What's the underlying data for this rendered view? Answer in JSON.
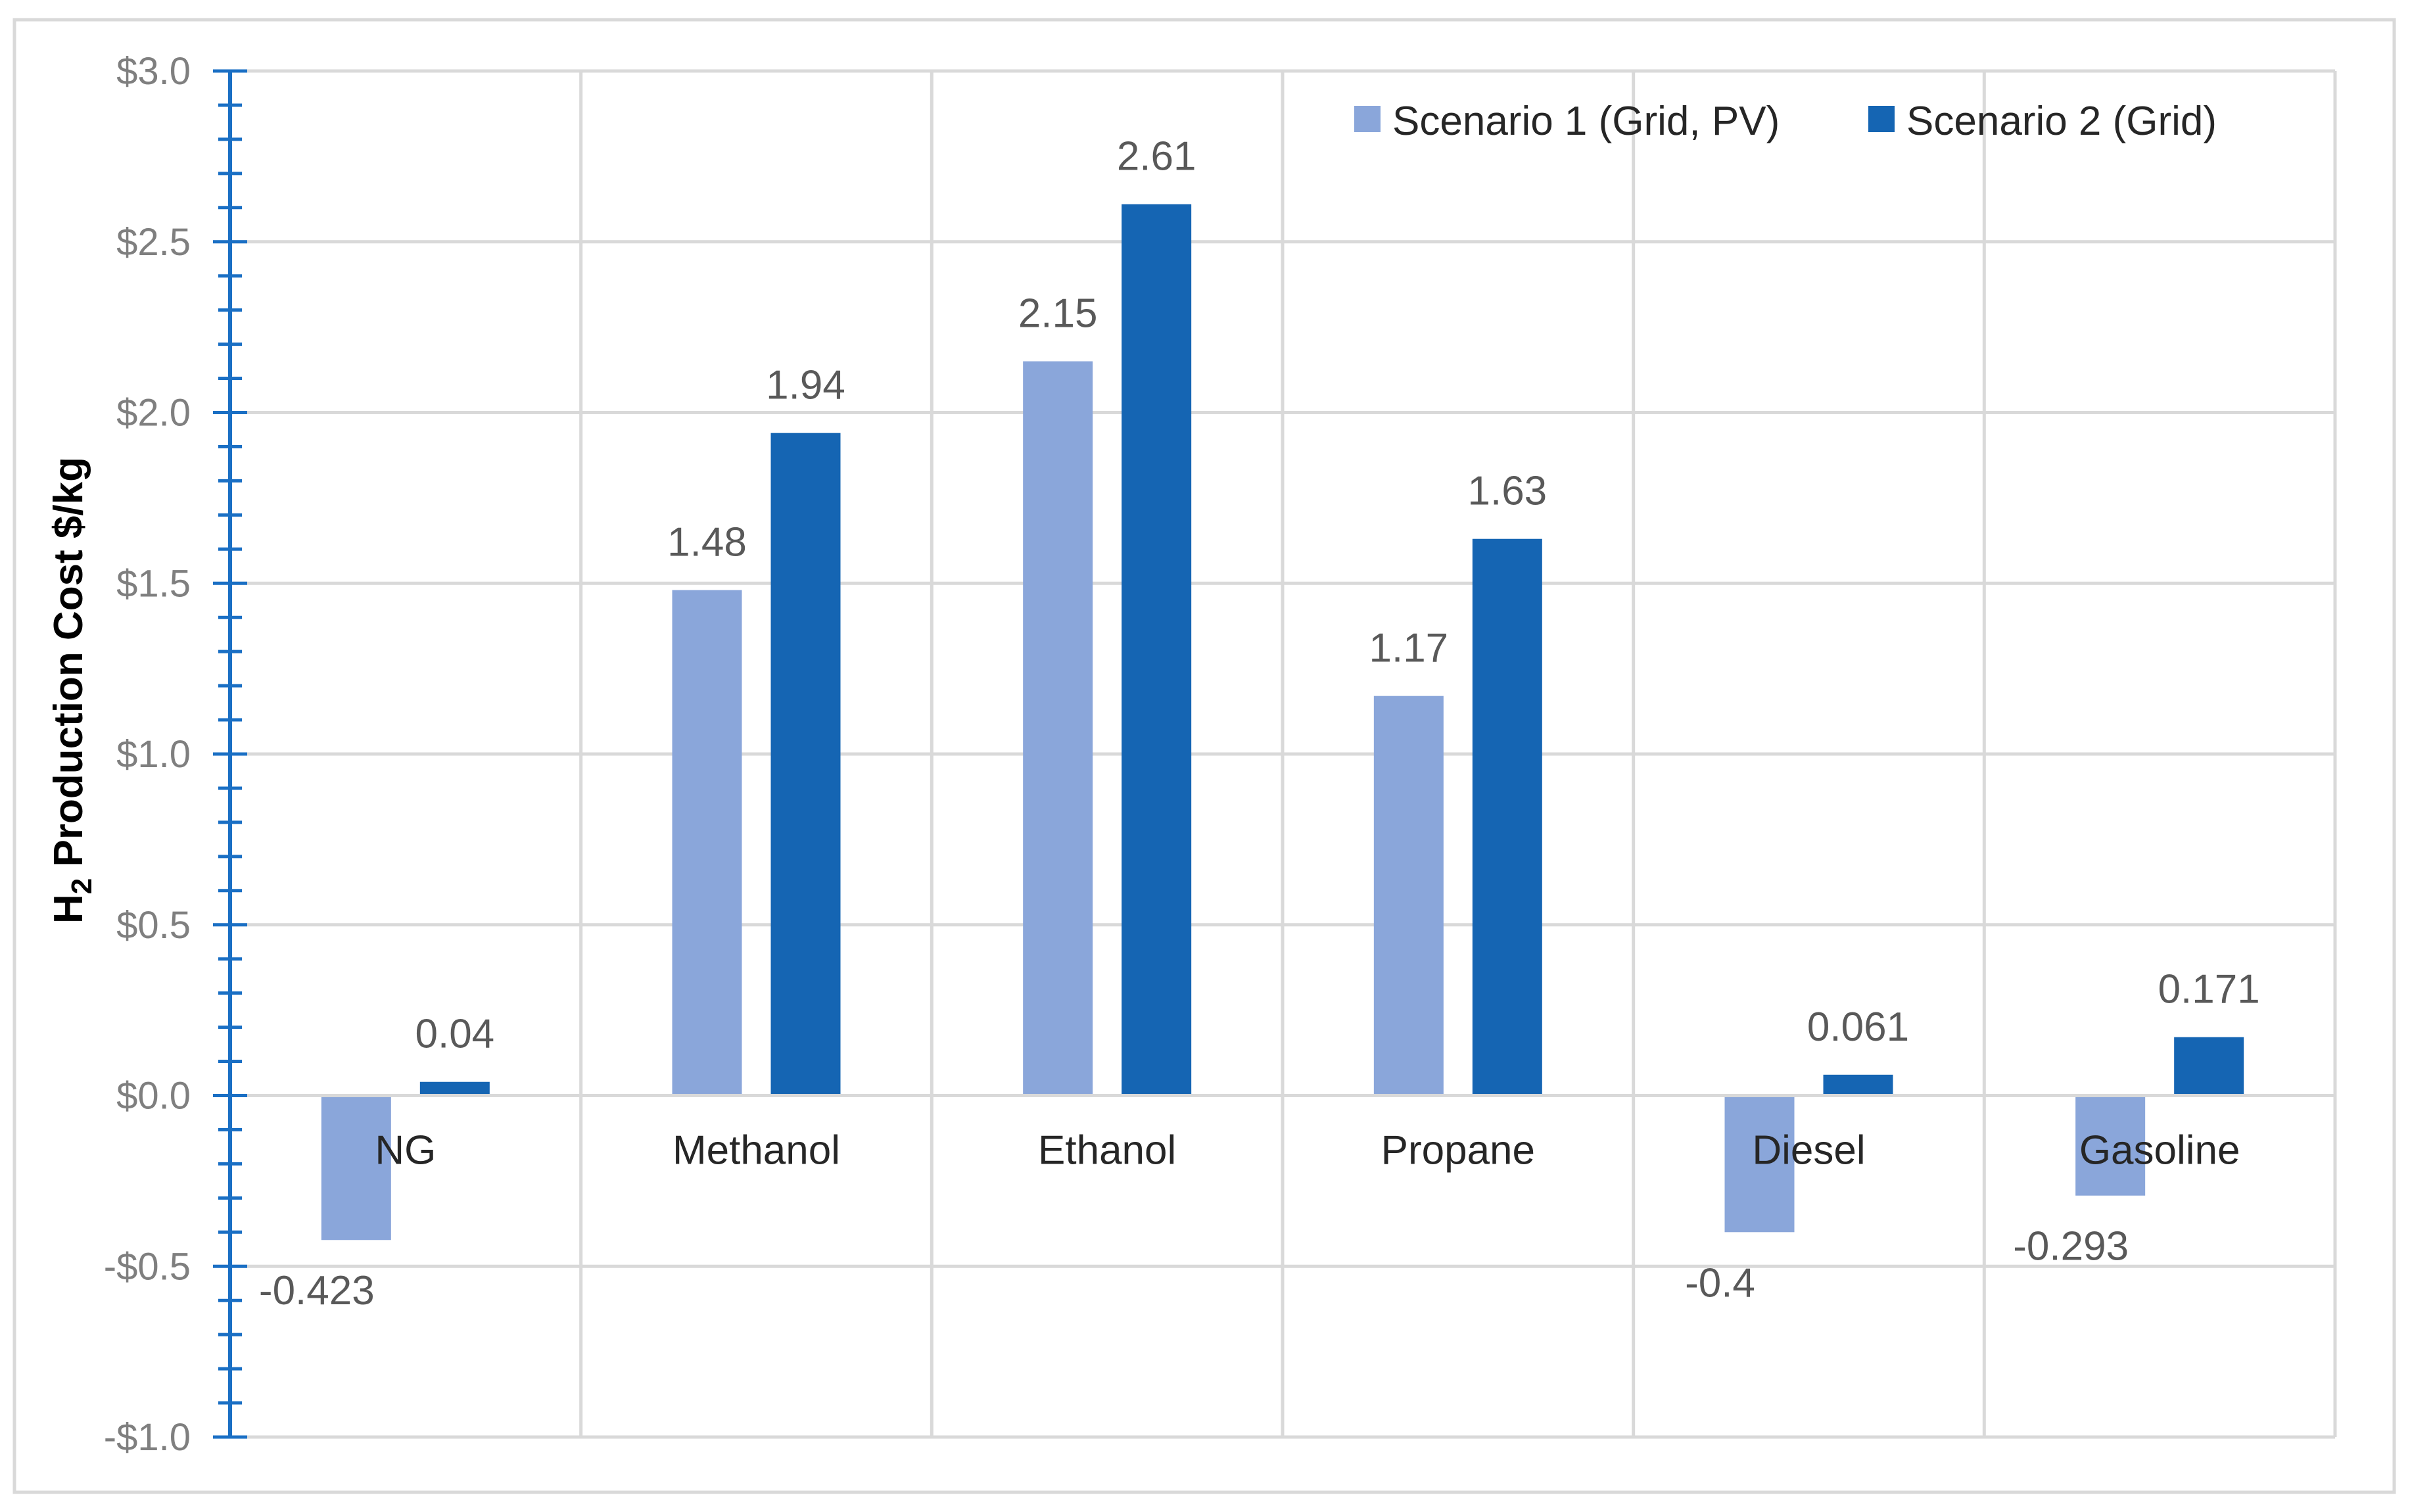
{
  "chart_data": {
    "type": "bar",
    "title": "",
    "xlabel": "",
    "ylabel": "H2 Production Cost $/kg",
    "ylabel_main": "H",
    "ylabel_sub": "2",
    "ylabel_rest": " Production Cost $/kg",
    "ylim": [
      -1.0,
      3.0
    ],
    "yticks": [
      3.0,
      2.5,
      2.0,
      1.5,
      1.0,
      0.5,
      0.0,
      -0.5,
      -1.0
    ],
    "ytick_labels": [
      "$3.0",
      "$2.5",
      "$2.0",
      "$1.5",
      "$1.0",
      "$0.5",
      "$0.0",
      "-$0.5",
      "-$1.0"
    ],
    "grid": true,
    "legend_position": "top-right",
    "categories": [
      "NG",
      "Methanol",
      "Ethanol",
      "Propane",
      "Diesel",
      "Gasoline"
    ],
    "series": [
      {
        "name": "Scenario 1 (Grid, PV)",
        "color": "#8aa6da",
        "values": [
          -0.423,
          1.48,
          2.15,
          1.17,
          -0.4,
          -0.293
        ],
        "labels": [
          "-0.423",
          "1.48",
          "2.15",
          "1.17",
          "-0.4",
          "-0.293"
        ]
      },
      {
        "name": "Scenario 2 (Grid)",
        "color": "#1565b3",
        "values": [
          0.04,
          1.94,
          2.61,
          1.63,
          0.061,
          0.171
        ],
        "labels": [
          "0.04",
          "1.94",
          "2.61",
          "1.63",
          "0.061",
          "0.171"
        ]
      }
    ],
    "colors": {
      "axis": "#1a6fc4",
      "grid": "#d9d9d9",
      "frame": "#d9d9d9"
    }
  }
}
